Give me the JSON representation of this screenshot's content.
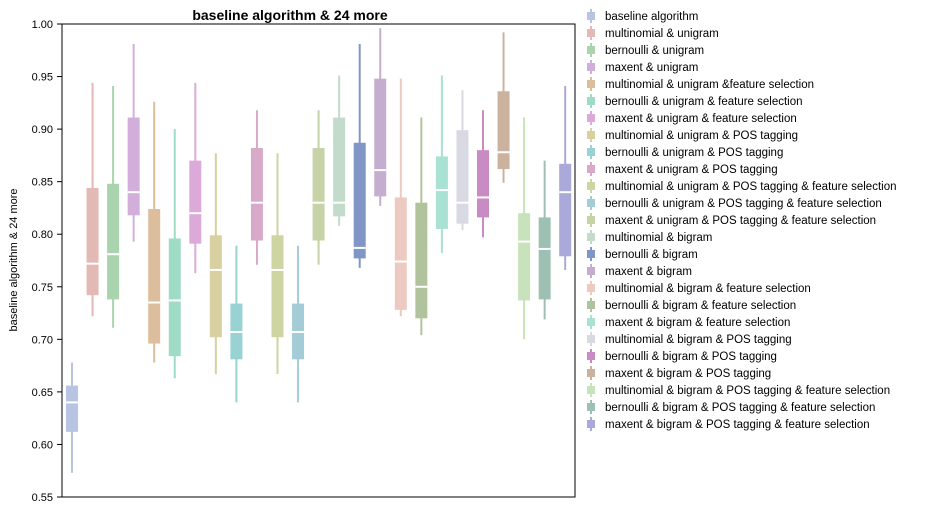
{
  "chart_data": {
    "type": "boxplot",
    "title": "baseline algorithm & 24 more",
    "xlabel": "",
    "ylabel": "baseline algorithm & 24 more",
    "ylim": [
      0.55,
      1.0
    ],
    "yticks": [
      "0.55",
      "0.60",
      "0.65",
      "0.70",
      "0.75",
      "0.80",
      "0.85",
      "0.90",
      "0.95",
      "1.00"
    ],
    "grid": false,
    "legend_position": "right",
    "series": [
      {
        "name": "baseline algorithm",
        "color": "#b8c5e2",
        "min": 0.573,
        "q1": 0.612,
        "median": 0.64,
        "q3": 0.656,
        "max": 0.678
      },
      {
        "name": "multinomial & unigram",
        "color": "#e2b9b5",
        "min": 0.722,
        "q1": 0.742,
        "median": 0.772,
        "q3": 0.844,
        "max": 0.944
      },
      {
        "name": "bernoulli & unigram",
        "color": "#a9d4ad",
        "min": 0.711,
        "q1": 0.738,
        "median": 0.781,
        "q3": 0.848,
        "max": 0.941
      },
      {
        "name": "maxent & unigram",
        "color": "#d2afdb",
        "min": 0.793,
        "q1": 0.818,
        "median": 0.84,
        "q3": 0.911,
        "max": 0.981
      },
      {
        "name": "multinomial & unigram &feature selection",
        "color": "#dcbe9d",
        "min": 0.678,
        "q1": 0.696,
        "median": 0.735,
        "q3": 0.824,
        "max": 0.926
      },
      {
        "name": "bernoulli & unigram & feature selection",
        "color": "#9fdcc6",
        "min": 0.663,
        "q1": 0.684,
        "median": 0.737,
        "q3": 0.796,
        "max": 0.9
      },
      {
        "name": "maxent & unigram & feature selection",
        "color": "#dcaad8",
        "min": 0.763,
        "q1": 0.791,
        "median": 0.82,
        "q3": 0.87,
        "max": 0.944
      },
      {
        "name": "multinomial & unigram & POS tagging",
        "color": "#d8d0a0",
        "min": 0.667,
        "q1": 0.702,
        "median": 0.766,
        "q3": 0.799,
        "max": 0.877
      },
      {
        "name": "bernoulli & unigram & POS tagging",
        "color": "#98d2d2",
        "min": 0.64,
        "q1": 0.681,
        "median": 0.707,
        "q3": 0.734,
        "max": 0.789
      },
      {
        "name": "maxent & unigram & POS tagging",
        "color": "#d8a9c8",
        "min": 0.771,
        "q1": 0.794,
        "median": 0.83,
        "q3": 0.882,
        "max": 0.918
      },
      {
        "name": "multinomial & unigram & POS tagging & feature selection",
        "color": "#cfd5a2",
        "min": 0.667,
        "q1": 0.702,
        "median": 0.766,
        "q3": 0.799,
        "max": 0.877
      },
      {
        "name": "bernoulli & unigram & POS tagging & feature selection",
        "color": "#a3ccd6",
        "min": 0.64,
        "q1": 0.681,
        "median": 0.707,
        "q3": 0.734,
        "max": 0.789
      },
      {
        "name": "maxent & unigram & POS tagging & feature selection",
        "color": "#c6d3a6",
        "min": 0.771,
        "q1": 0.794,
        "median": 0.83,
        "q3": 0.882,
        "max": 0.918
      },
      {
        "name": "multinomial & bigram",
        "color": "#c3dbcb",
        "min": 0.808,
        "q1": 0.817,
        "median": 0.83,
        "q3": 0.911,
        "max": 0.951
      },
      {
        "name": "bernoulli & bigram",
        "color": "#8096c6",
        "min": 0.768,
        "q1": 0.777,
        "median": 0.787,
        "q3": 0.887,
        "max": 0.981
      },
      {
        "name": "maxent & bigram",
        "color": "#c4adce",
        "min": 0.827,
        "q1": 0.836,
        "median": 0.861,
        "q3": 0.948,
        "max": 0.996
      },
      {
        "name": "multinomial & bigram & feature selection",
        "color": "#ecc9c1",
        "min": 0.722,
        "q1": 0.728,
        "median": 0.774,
        "q3": 0.835,
        "max": 0.948
      },
      {
        "name": "bernoulli & bigram & feature selection",
        "color": "#b0c39d",
        "min": 0.704,
        "q1": 0.72,
        "median": 0.75,
        "q3": 0.83,
        "max": 0.911
      },
      {
        "name": "maxent & bigram & feature selection",
        "color": "#a9e1d2",
        "min": 0.782,
        "q1": 0.805,
        "median": 0.842,
        "q3": 0.874,
        "max": 0.951
      },
      {
        "name": "multinomial & bigram & POS tagging",
        "color": "#d9d9e3",
        "min": 0.804,
        "q1": 0.81,
        "median": 0.83,
        "q3": 0.899,
        "max": 0.937
      },
      {
        "name": "bernoulli & bigram & POS tagging",
        "color": "#c98bc3",
        "min": 0.797,
        "q1": 0.816,
        "median": 0.835,
        "q3": 0.88,
        "max": 0.918
      },
      {
        "name": "maxent & bigram & POS tagging",
        "color": "#cbb29e",
        "min": 0.849,
        "q1": 0.862,
        "median": 0.878,
        "q3": 0.936,
        "max": 0.992
      },
      {
        "name": "multinomial & bigram & POS tagging & feature selection",
        "color": "#c8e2bc",
        "min": 0.7,
        "q1": 0.737,
        "median": 0.793,
        "q3": 0.82,
        "max": 0.911
      },
      {
        "name": "bernoulli & bigram & POS tagging & feature selection",
        "color": "#9ec0b3",
        "min": 0.719,
        "q1": 0.738,
        "median": 0.786,
        "q3": 0.816,
        "max": 0.87
      },
      {
        "name": "maxent & bigram & POS tagging & feature selection",
        "color": "#aaa9d9",
        "min": 0.766,
        "q1": 0.779,
        "median": 0.84,
        "q3": 0.867,
        "max": 0.941
      }
    ]
  }
}
